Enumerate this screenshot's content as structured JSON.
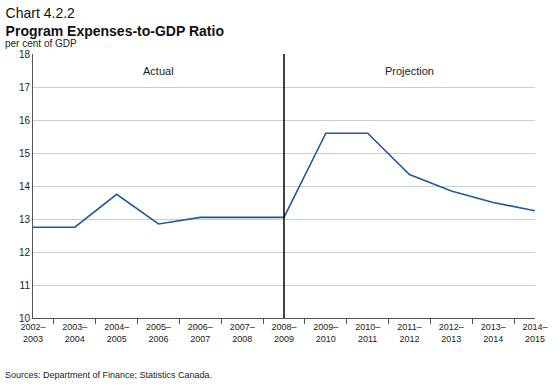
{
  "chart_data": {
    "type": "line",
    "title": "Chart 4.2.2",
    "subtitle": "Program Expenses-to-GDP Ratio",
    "y_label": "per cent of GDP",
    "source": "Sources: Department of Finance; Statistics Canada.",
    "categories": [
      "2002–2003",
      "2003–2004",
      "2004–2005",
      "2005–2006",
      "2006–2007",
      "2007–2008",
      "2008–2009",
      "2009–2010",
      "2010–2011",
      "2011–2012",
      "2012–2013",
      "2013–2014",
      "2014–2015"
    ],
    "values": [
      12.75,
      12.75,
      13.75,
      12.85,
      13.05,
      13.05,
      13.05,
      15.6,
      15.6,
      14.35,
      13.85,
      13.5,
      13.25
    ],
    "color": "#1f5c99",
    "ylim": [
      10,
      18
    ],
    "yticks": [
      10,
      11,
      12,
      13,
      14,
      15,
      16,
      17,
      18
    ],
    "grid": true,
    "vertical_line": "2008–2009",
    "annotations": [
      {
        "text": "Actual",
        "x": "2005–2006",
        "y": 17.5
      },
      {
        "text": "Projection",
        "x": "2011–2012",
        "y": 17.5
      }
    ]
  }
}
